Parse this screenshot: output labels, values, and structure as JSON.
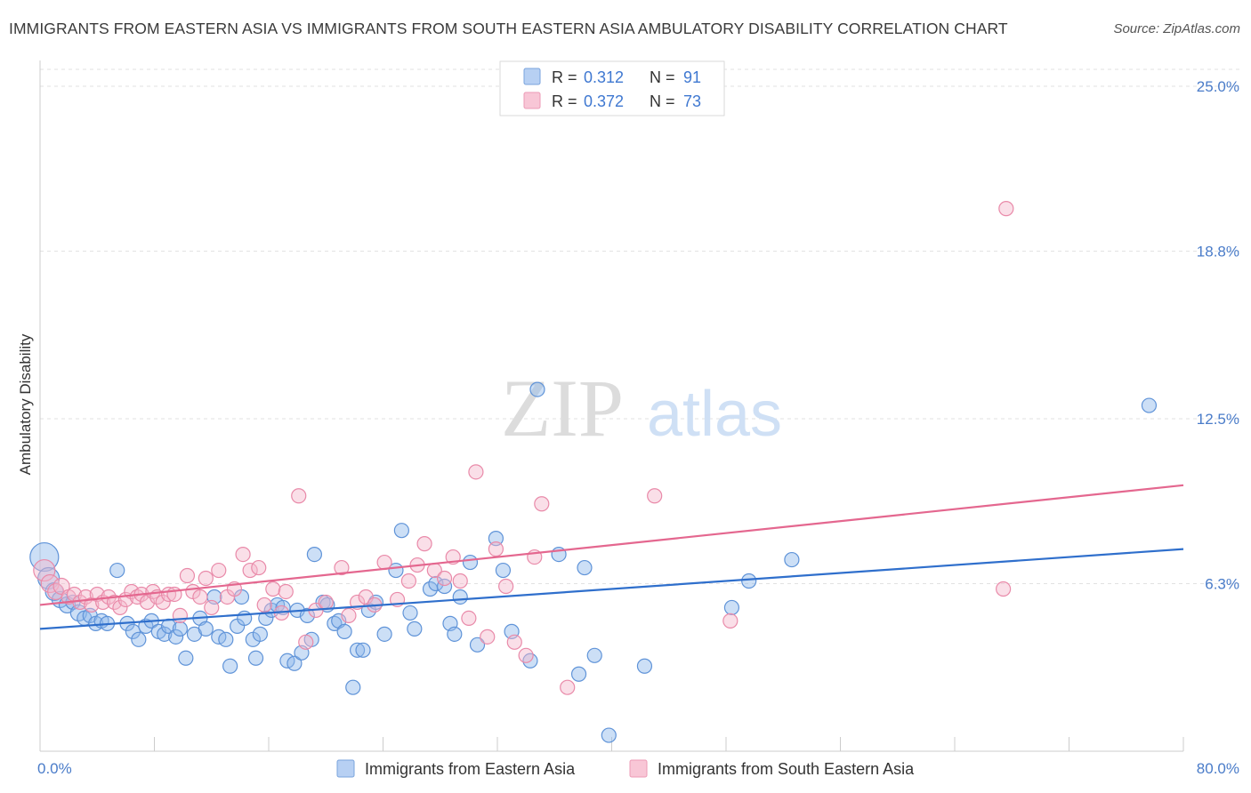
{
  "title": "IMMIGRANTS FROM EASTERN ASIA VS IMMIGRANTS FROM SOUTH EASTERN ASIA AMBULATORY DISABILITY CORRELATION CHART",
  "source": "Source: ZipAtlas.com",
  "watermark": {
    "zip": "ZIP",
    "atlas": "atlas"
  },
  "chart_data": {
    "type": "scatter",
    "ylabel": "Ambulatory Disability",
    "xlim": [
      0,
      80
    ],
    "ylim": [
      0,
      25.0
    ],
    "x_tick_labels": [
      "0.0%",
      "80.0%"
    ],
    "y_ticks": [
      6.3,
      12.5,
      18.8,
      25.0
    ],
    "y_tick_labels": [
      "6.3%",
      "12.5%",
      "18.8%",
      "25.0%"
    ],
    "grid": "horizontal-dashed",
    "legend_position": "top-center",
    "legend": [
      {
        "r_label": "R =",
        "r_value": "0.312",
        "n_label": "N =",
        "n_value": "91"
      },
      {
        "r_label": "R =",
        "r_value": "0.372",
        "n_label": "N =",
        "n_value": "73"
      }
    ],
    "series": [
      {
        "name": "Immigrants from Eastern Asia",
        "color": "#8fb8ec",
        "stroke": "#5f93d8",
        "line_color": "#2f6fcc",
        "trend": [
          [
            0,
            4.6
          ],
          [
            80,
            7.6
          ]
        ],
        "points": [
          [
            0.3,
            7.3,
            16
          ],
          [
            0.6,
            6.5,
            12
          ],
          [
            1.0,
            6.0,
            10
          ],
          [
            1.4,
            5.7,
            9
          ],
          [
            1.9,
            5.5,
            9
          ],
          [
            2.3,
            5.6,
            8
          ],
          [
            2.7,
            5.2,
            9
          ],
          [
            3.1,
            5.0,
            8
          ],
          [
            3.5,
            5.1,
            8
          ],
          [
            3.9,
            4.8,
            8
          ],
          [
            4.3,
            4.9,
            8
          ],
          [
            4.7,
            4.8,
            8
          ],
          [
            5.4,
            6.8,
            8
          ],
          [
            6.1,
            4.8,
            8
          ],
          [
            6.5,
            4.5,
            8
          ],
          [
            6.9,
            4.2,
            8
          ],
          [
            7.4,
            4.7,
            8
          ],
          [
            7.8,
            4.9,
            8
          ],
          [
            8.3,
            4.5,
            8
          ],
          [
            8.7,
            4.4,
            8
          ],
          [
            9.0,
            4.7,
            8
          ],
          [
            9.5,
            4.3,
            8
          ],
          [
            9.8,
            4.6,
            8
          ],
          [
            10.2,
            3.5,
            8
          ],
          [
            10.8,
            4.4,
            8
          ],
          [
            11.2,
            5.0,
            8
          ],
          [
            11.6,
            4.6,
            8
          ],
          [
            12.2,
            5.8,
            8
          ],
          [
            12.5,
            4.3,
            8
          ],
          [
            13.0,
            4.2,
            8
          ],
          [
            13.3,
            3.2,
            8
          ],
          [
            13.8,
            4.7,
            8
          ],
          [
            14.1,
            5.8,
            8
          ],
          [
            14.3,
            5.0,
            8
          ],
          [
            14.9,
            4.2,
            8
          ],
          [
            15.1,
            3.5,
            8
          ],
          [
            15.4,
            4.4,
            8
          ],
          [
            15.8,
            5.0,
            8
          ],
          [
            16.2,
            5.3,
            8
          ],
          [
            16.6,
            5.5,
            8
          ],
          [
            17.0,
            5.4,
            8
          ],
          [
            17.3,
            3.4,
            8
          ],
          [
            17.8,
            3.3,
            8
          ],
          [
            18.0,
            5.3,
            8
          ],
          [
            18.3,
            3.7,
            8
          ],
          [
            18.7,
            5.1,
            8
          ],
          [
            19.0,
            4.2,
            8
          ],
          [
            19.2,
            7.4,
            8
          ],
          [
            19.8,
            5.6,
            8
          ],
          [
            20.1,
            5.5,
            8
          ],
          [
            20.6,
            4.8,
            8
          ],
          [
            20.9,
            4.9,
            8
          ],
          [
            21.3,
            4.5,
            8
          ],
          [
            21.9,
            2.4,
            8
          ],
          [
            22.2,
            3.8,
            8
          ],
          [
            22.6,
            3.8,
            8
          ],
          [
            23.0,
            5.3,
            8
          ],
          [
            23.5,
            5.6,
            8
          ],
          [
            24.1,
            4.4,
            8
          ],
          [
            24.9,
            6.8,
            8
          ],
          [
            25.3,
            8.3,
            8
          ],
          [
            25.9,
            5.2,
            8
          ],
          [
            26.2,
            4.6,
            8
          ],
          [
            27.3,
            6.1,
            8
          ],
          [
            27.7,
            6.3,
            8
          ],
          [
            28.3,
            6.2,
            8
          ],
          [
            28.7,
            4.8,
            8
          ],
          [
            29.0,
            4.4,
            8
          ],
          [
            29.4,
            5.8,
            8
          ],
          [
            30.1,
            7.1,
            8
          ],
          [
            30.6,
            4.0,
            8
          ],
          [
            31.9,
            8.0,
            8
          ],
          [
            32.4,
            6.8,
            8
          ],
          [
            33.0,
            4.5,
            8
          ],
          [
            34.3,
            3.4,
            8
          ],
          [
            34.8,
            13.6,
            8
          ],
          [
            36.3,
            7.4,
            8
          ],
          [
            37.7,
            2.9,
            8
          ],
          [
            38.1,
            6.9,
            8
          ],
          [
            38.8,
            3.6,
            8
          ],
          [
            39.8,
            0.6,
            8
          ],
          [
            42.3,
            3.2,
            8
          ],
          [
            48.4,
            5.4,
            8
          ],
          [
            49.6,
            6.4,
            8
          ],
          [
            52.6,
            7.2,
            8
          ],
          [
            77.6,
            13.0,
            8
          ]
        ]
      },
      {
        "name": "Immigrants from South Eastern Asia",
        "color": "#f5b7cb",
        "stroke": "#e98aa9",
        "line_color": "#e4678f",
        "trend": [
          [
            0,
            5.5
          ],
          [
            80,
            10.0
          ]
        ],
        "points": [
          [
            0.3,
            6.8,
            12
          ],
          [
            0.7,
            6.3,
            10
          ],
          [
            1.1,
            6.0,
            9
          ],
          [
            1.5,
            6.2,
            9
          ],
          [
            2.0,
            5.8,
            8
          ],
          [
            2.4,
            5.9,
            8
          ],
          [
            2.8,
            5.6,
            8
          ],
          [
            3.2,
            5.8,
            8
          ],
          [
            3.6,
            5.5,
            8
          ],
          [
            4.0,
            5.9,
            8
          ],
          [
            4.4,
            5.6,
            8
          ],
          [
            4.8,
            5.8,
            8
          ],
          [
            5.2,
            5.6,
            8
          ],
          [
            5.6,
            5.4,
            8
          ],
          [
            6.0,
            5.7,
            8
          ],
          [
            6.4,
            6.0,
            8
          ],
          [
            6.8,
            5.8,
            8
          ],
          [
            7.1,
            5.9,
            8
          ],
          [
            7.5,
            5.6,
            8
          ],
          [
            7.9,
            6.0,
            8
          ],
          [
            8.2,
            5.8,
            8
          ],
          [
            8.6,
            5.6,
            8
          ],
          [
            9.0,
            5.9,
            8
          ],
          [
            9.4,
            5.9,
            8
          ],
          [
            9.8,
            5.1,
            8
          ],
          [
            10.3,
            6.6,
            8
          ],
          [
            10.7,
            6.0,
            8
          ],
          [
            11.2,
            5.8,
            8
          ],
          [
            11.6,
            6.5,
            8
          ],
          [
            12.0,
            5.4,
            8
          ],
          [
            12.5,
            6.8,
            8
          ],
          [
            13.1,
            5.8,
            8
          ],
          [
            13.6,
            6.1,
            8
          ],
          [
            14.2,
            7.4,
            8
          ],
          [
            14.7,
            6.8,
            8
          ],
          [
            15.3,
            6.9,
            8
          ],
          [
            15.7,
            5.5,
            8
          ],
          [
            16.3,
            6.1,
            8
          ],
          [
            16.9,
            5.2,
            8
          ],
          [
            17.2,
            6.0,
            8
          ],
          [
            18.1,
            9.6,
            8
          ],
          [
            18.6,
            4.1,
            8
          ],
          [
            19.3,
            5.3,
            8
          ],
          [
            20.0,
            5.6,
            8
          ],
          [
            21.1,
            6.9,
            8
          ],
          [
            21.6,
            5.1,
            8
          ],
          [
            22.2,
            5.6,
            8
          ],
          [
            22.8,
            5.8,
            8
          ],
          [
            23.4,
            5.5,
            8
          ],
          [
            24.1,
            7.1,
            8
          ],
          [
            25.0,
            5.7,
            8
          ],
          [
            25.8,
            6.4,
            8
          ],
          [
            26.4,
            7.0,
            8
          ],
          [
            26.9,
            7.8,
            8
          ],
          [
            27.6,
            6.8,
            8
          ],
          [
            28.3,
            6.5,
            8
          ],
          [
            28.9,
            7.3,
            8
          ],
          [
            29.4,
            6.4,
            8
          ],
          [
            30.0,
            5.0,
            8
          ],
          [
            30.5,
            10.5,
            8
          ],
          [
            31.3,
            4.3,
            8
          ],
          [
            31.9,
            7.6,
            8
          ],
          [
            32.6,
            6.2,
            8
          ],
          [
            33.2,
            4.1,
            8
          ],
          [
            34.0,
            3.6,
            8
          ],
          [
            34.6,
            7.3,
            8
          ],
          [
            35.1,
            9.3,
            8
          ],
          [
            36.9,
            2.4,
            8
          ],
          [
            43.0,
            9.6,
            8
          ],
          [
            48.3,
            4.9,
            8
          ],
          [
            67.4,
            6.1,
            8
          ],
          [
            67.6,
            20.4,
            8
          ]
        ]
      }
    ]
  }
}
